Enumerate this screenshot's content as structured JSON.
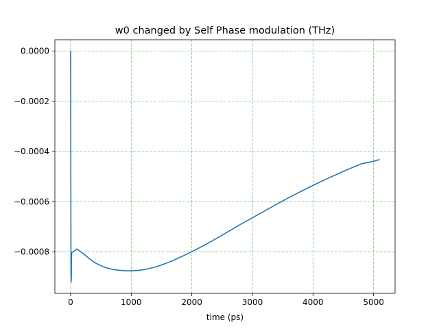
{
  "chart_data": {
    "type": "line",
    "title": "w0 changed by Self Phase modulation (THz)",
    "xlabel": "time (ps)",
    "ylabel": "",
    "xlim": [
      -260,
      5355
    ],
    "ylim": [
      -0.000965,
      4.5e-05
    ],
    "x_ticks": [
      {
        "value": 0,
        "label": "0"
      },
      {
        "value": 1000,
        "label": "1000"
      },
      {
        "value": 2000,
        "label": "2000"
      },
      {
        "value": 3000,
        "label": "3000"
      },
      {
        "value": 4000,
        "label": "4000"
      },
      {
        "value": 5000,
        "label": "5000"
      }
    ],
    "y_ticks": [
      {
        "value": 0,
        "label": "0.0000"
      },
      {
        "value": -0.0002,
        "label": "−0.0002"
      },
      {
        "value": -0.0004,
        "label": "−0.0004"
      },
      {
        "value": -0.0006,
        "label": "−0.0006"
      },
      {
        "value": -0.0008,
        "label": "−0.0008"
      }
    ],
    "grid": true,
    "grid_color": "#2ca02c",
    "series": [
      {
        "color": "#1f77b4",
        "x": [
          0,
          2,
          5,
          8,
          12,
          15,
          18,
          22,
          30,
          50,
          100,
          200,
          300,
          400,
          500,
          600,
          700,
          800,
          900,
          1000,
          1100,
          1200,
          1300,
          1400,
          1500,
          1600,
          1700,
          1800,
          1900,
          2000,
          2200,
          2400,
          2600,
          2800,
          3000,
          3200,
          3400,
          3600,
          3800,
          4000,
          4200,
          4400,
          4600,
          4800,
          5000,
          5100
        ],
        "y": [
          0.0,
          -0.0003,
          -0.00075,
          -0.00092,
          -0.0009,
          -0.00081,
          -0.000805,
          -0.000802,
          -0.0008,
          -0.000799,
          -0.000788,
          -0.000805,
          -0.000825,
          -0.000843,
          -0.000855,
          -0.000864,
          -0.00087,
          -0.000873,
          -0.000875,
          -0.000875,
          -0.000874,
          -0.000871,
          -0.000866,
          -0.00086,
          -0.000852,
          -0.000843,
          -0.000833,
          -0.000822,
          -0.000811,
          -0.000799,
          -0.000774,
          -0.000747,
          -0.000719,
          -0.000691,
          -0.000664,
          -0.000637,
          -0.00061,
          -0.000584,
          -0.000559,
          -0.000535,
          -0.000512,
          -0.00049,
          -0.000469,
          -0.000449,
          -0.000439,
          -0.000432
        ]
      }
    ]
  }
}
